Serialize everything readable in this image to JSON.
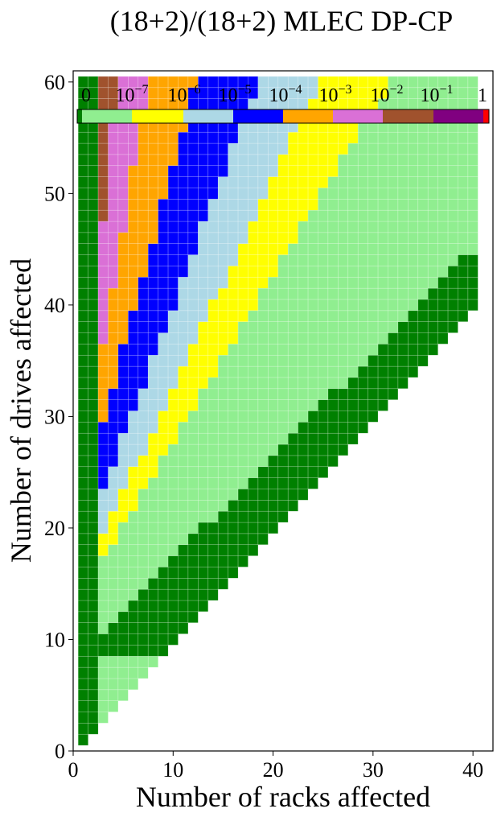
{
  "chart_data": {
    "type": "heatmap",
    "title": "(18+2)/(18+2) MLEC DP-CP",
    "xlabel": "Number of racks affected",
    "ylabel": "Number of drives affected",
    "xlim": [
      0,
      42
    ],
    "ylim": [
      0,
      61
    ],
    "xticks": [
      "0",
      "10",
      "20",
      "30",
      "40"
    ],
    "yticks": [
      "0",
      "10",
      "20",
      "30",
      "40",
      "50",
      "60"
    ],
    "grid": false,
    "legend": "colorbar at top",
    "colorbar": {
      "labels": [
        {
          "base": "0",
          "exp": ""
        },
        {
          "base": "10",
          "exp": "−7"
        },
        {
          "base": "10",
          "exp": "−6"
        },
        {
          "base": "10",
          "exp": "−5"
        },
        {
          "base": "10",
          "exp": "−4"
        },
        {
          "base": "10",
          "exp": "−3"
        },
        {
          "base": "10",
          "exp": "−2"
        },
        {
          "base": "10",
          "exp": "−1"
        },
        {
          "base": "1",
          "exp": ""
        }
      ]
    },
    "colors": {
      "zero": "#008000",
      "le_1e-7": "#90ee90",
      "le_1e-6": "#ffff00",
      "le_1e-5": "#add8e6",
      "le_1e-4": "#0000ff",
      "le_1e-3": "#ffa500",
      "le_1e-2": "#da70d6",
      "le_1e-1": "#a0522d",
      "lt_1": "#800080",
      "one": "#ff0000"
    },
    "cells": "x = racks affected (1..40), y = drives affected (1..60); only cells with x <= y are shown",
    "region_boundaries": {
      "dark_green_upper_x_at_y": "y<=8: x<=y; y>8: x<=max(1, floor((y-8)*40/37)) on right edge; x<=2 on left edge",
      "zero_band_left": [
        1,
        2
      ],
      "yellow_band": "from y≈18 at x=3 to y=60 at x≈31",
      "lightblue_band": "from y≈20 at x=3 to y=60 at x≈24",
      "blue_band": "from y≈24 at x=3 to y=60 at x≈18",
      "orange_band": "from y≈30 at x=3 to y=60 at x≈12",
      "orchid_band": "from y≈37 at x=3 to y=60 at x≈7",
      "sienna_band": "from y≈48 at x=3 to y=60 at x≈4"
    }
  }
}
